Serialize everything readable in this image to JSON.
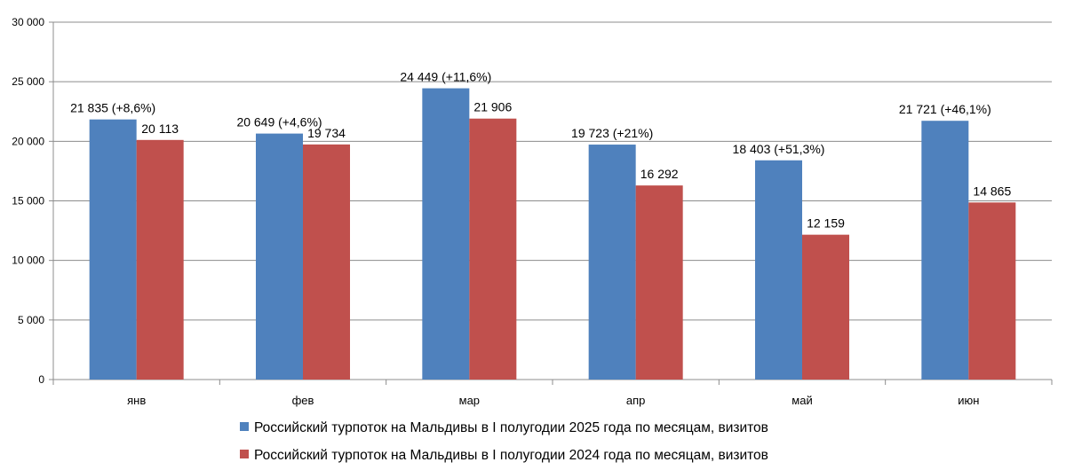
{
  "chart_data": {
    "type": "bar",
    "categories": [
      "янв",
      "фев",
      "мар",
      "апр",
      "май",
      "июн"
    ],
    "series": [
      {
        "name": "Российский турпоток на Мальдивы в I полугодии 2025 года по месяцам, визитов",
        "values": [
          21835,
          20649,
          24449,
          19723,
          18403,
          21721
        ],
        "labels": [
          "21 835 (+8,6%)",
          "20 649 (+4,6%)",
          "24 449 (+11,6%)",
          "19 723 (+21%)",
          "18 403 (+51,3%)",
          "21 721 (+46,1%)"
        ],
        "color": "#4F81BD"
      },
      {
        "name": "Российский турпоток на Мальдивы в I полугодии 2024 года по месяцам, визитов",
        "values": [
          20113,
          19734,
          21906,
          16292,
          12159,
          14865
        ],
        "labels": [
          "20 113",
          "19 734",
          "21 906",
          "16 292",
          "12 159",
          "14 865"
        ],
        "color": "#C0504D"
      }
    ],
    "ylim": [
      0,
      30000
    ],
    "yticks": [
      0,
      5000,
      10000,
      15000,
      20000,
      25000,
      30000
    ],
    "ytick_labels": [
      "0",
      "5 000",
      "10 000",
      "15 000",
      "20 000",
      "25 000",
      "30 000"
    ],
    "grid": true,
    "legend_position": "bottom",
    "title": "",
    "xlabel": "",
    "ylabel": ""
  }
}
